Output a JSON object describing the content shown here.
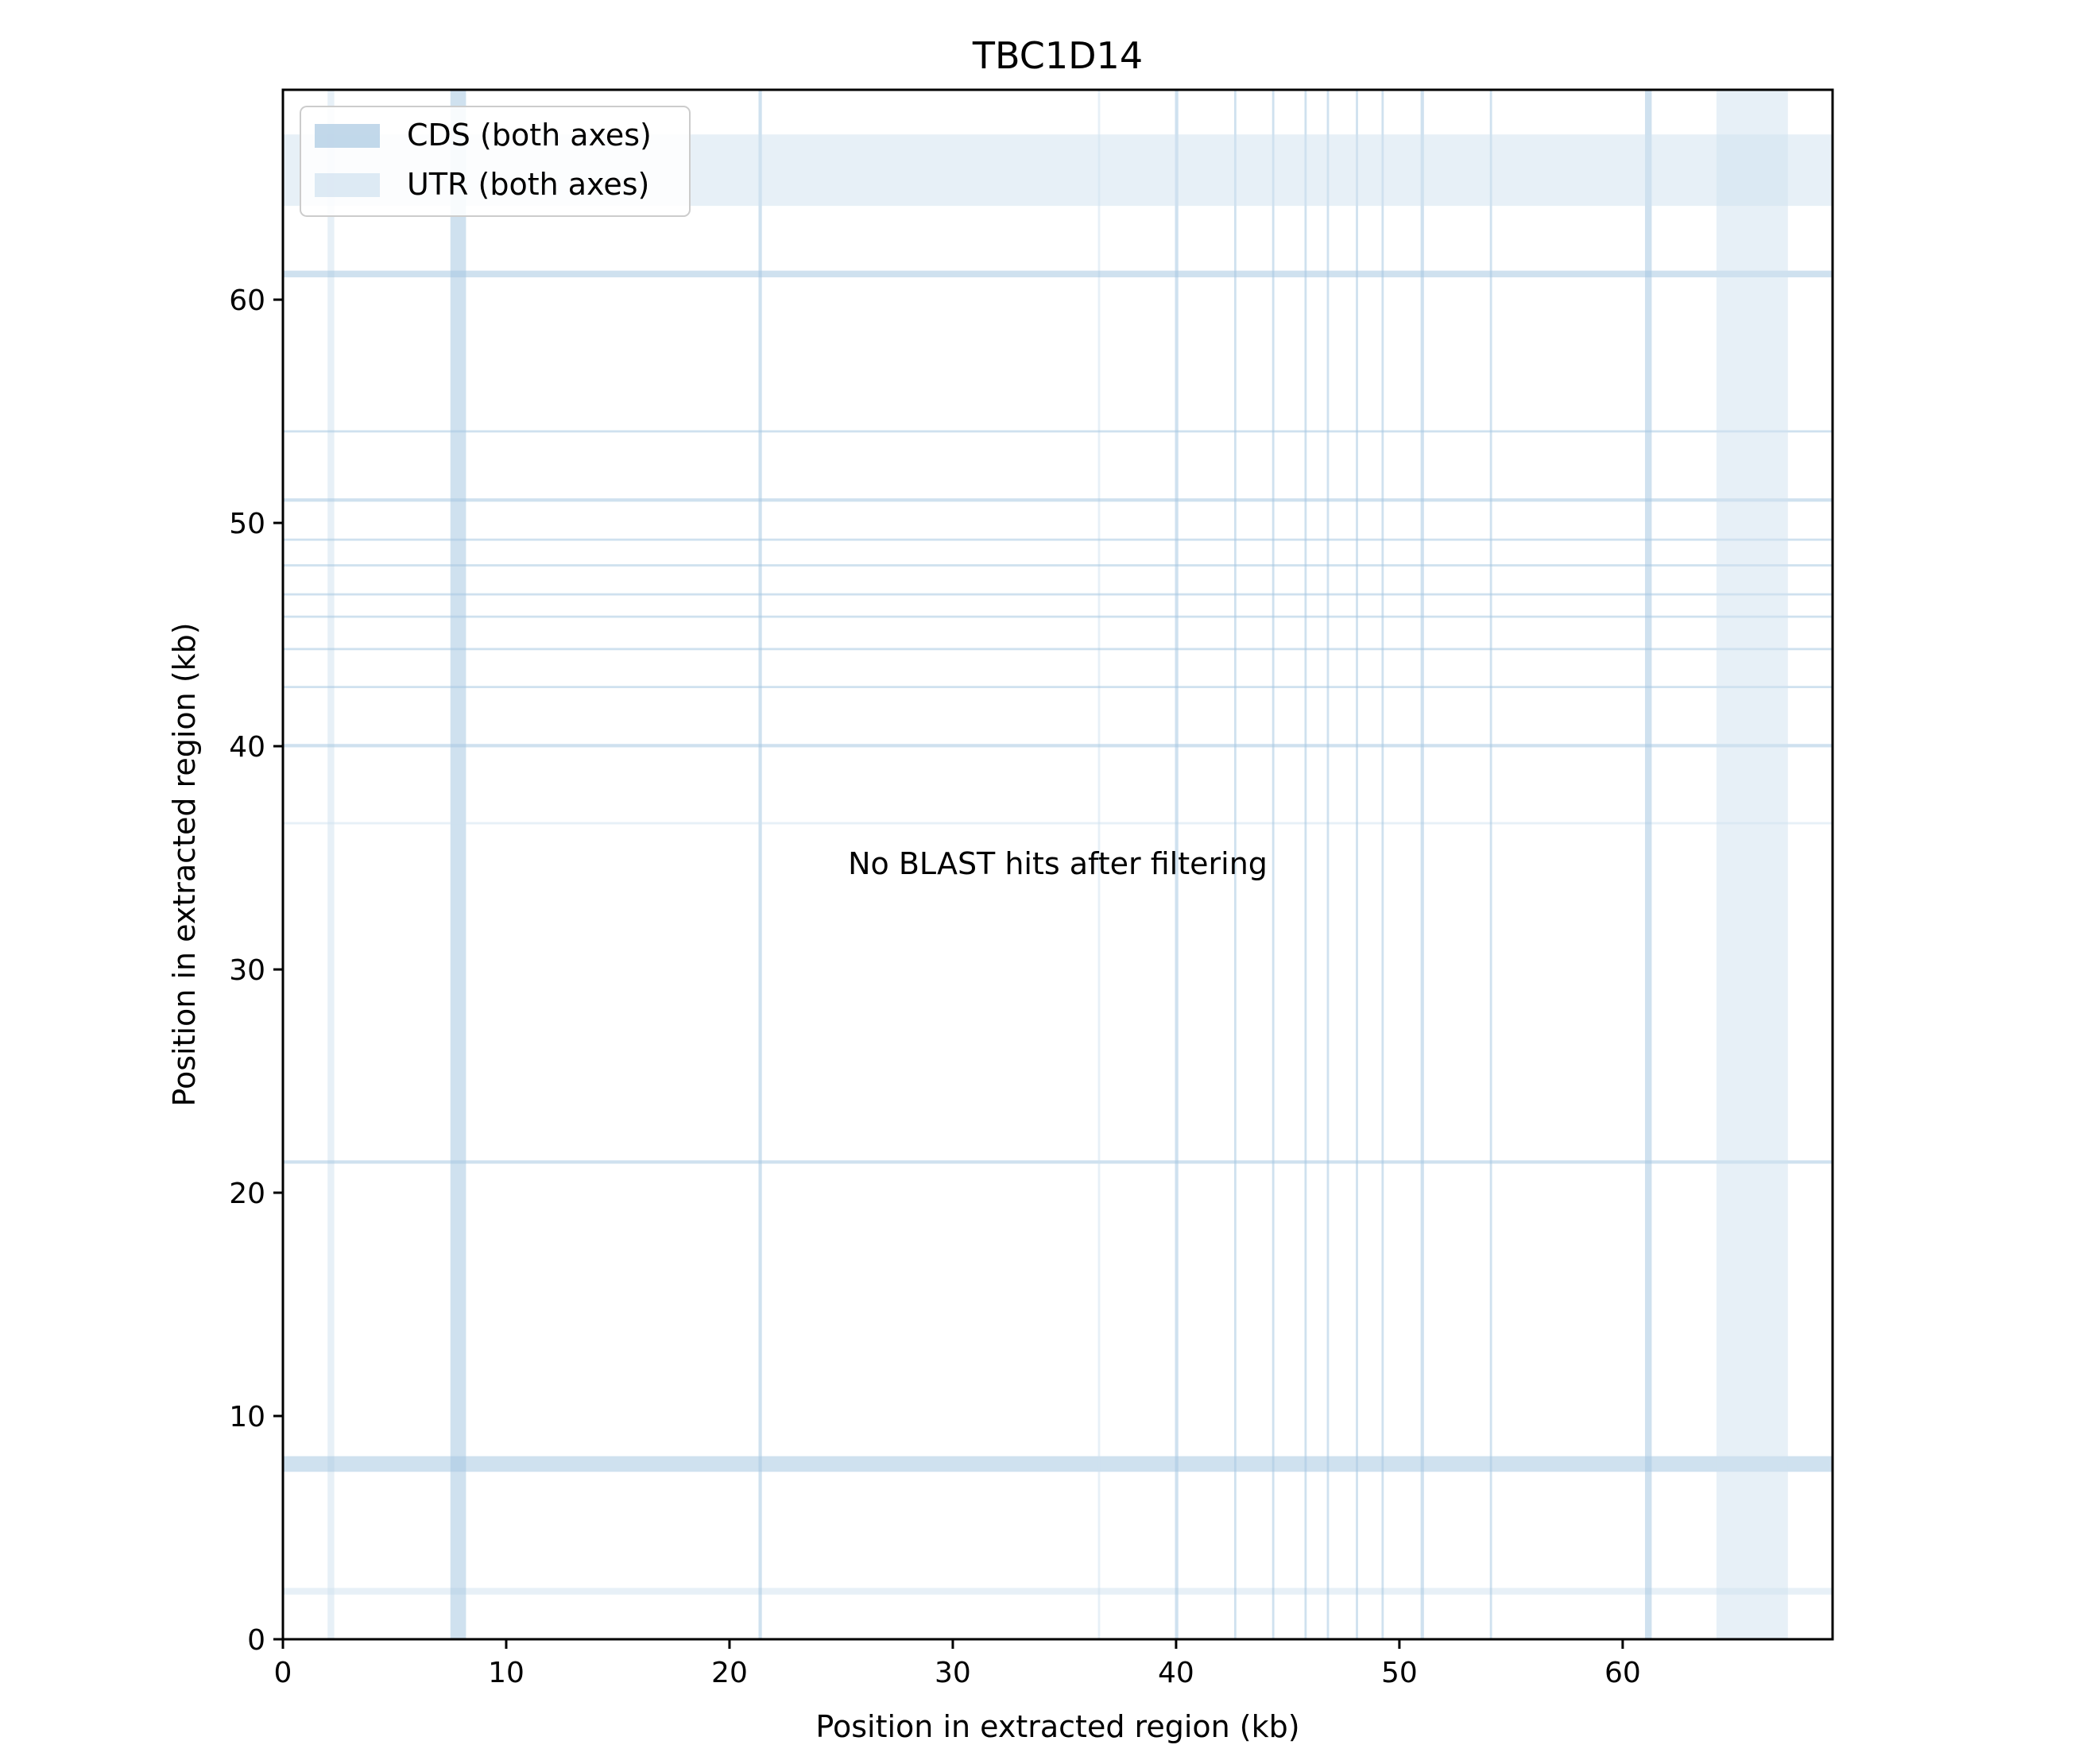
{
  "chart_data": {
    "type": "dotplot",
    "title": "TBC1D14",
    "xlabel": "Position in extracted region (kb)",
    "ylabel": "Position in extracted region (kb)",
    "xlim": [
      0,
      69.4
    ],
    "ylim": [
      0,
      69.4
    ],
    "xticks": [
      0,
      10,
      20,
      30,
      40,
      50,
      60
    ],
    "yticks": [
      0,
      10,
      20,
      30,
      40,
      50,
      60
    ],
    "grid": false,
    "legend_position": "top-left",
    "legend": [
      {
        "label": "CDS (both axes)",
        "kind": "cds"
      },
      {
        "label": "UTR (both axes)",
        "kind": "utr"
      }
    ],
    "annotation": "No BLAST hits after filtering",
    "points": [],
    "features": [
      {
        "kind": "utr",
        "start": 2.0,
        "end": 2.3
      },
      {
        "kind": "cds",
        "start": 7.5,
        "end": 8.2
      },
      {
        "kind": "cds",
        "start": 21.3,
        "end": 21.45
      },
      {
        "kind": "utr",
        "start": 36.5,
        "end": 36.6
      },
      {
        "kind": "cds",
        "start": 39.95,
        "end": 40.1
      },
      {
        "kind": "cds",
        "start": 42.6,
        "end": 42.7
      },
      {
        "kind": "cds",
        "start": 44.3,
        "end": 44.4
      },
      {
        "kind": "cds",
        "start": 45.75,
        "end": 45.85
      },
      {
        "kind": "cds",
        "start": 46.75,
        "end": 46.85
      },
      {
        "kind": "cds",
        "start": 48.05,
        "end": 48.15
      },
      {
        "kind": "cds",
        "start": 49.2,
        "end": 49.3
      },
      {
        "kind": "cds",
        "start": 50.95,
        "end": 51.1
      },
      {
        "kind": "cds",
        "start": 54.05,
        "end": 54.15
      },
      {
        "kind": "cds",
        "start": 61.0,
        "end": 61.3
      },
      {
        "kind": "utr",
        "start": 64.2,
        "end": 67.4
      }
    ],
    "colors": {
      "cds": "#a8c8e1",
      "utr": "#d0e1f0",
      "axes": "#000000"
    }
  }
}
